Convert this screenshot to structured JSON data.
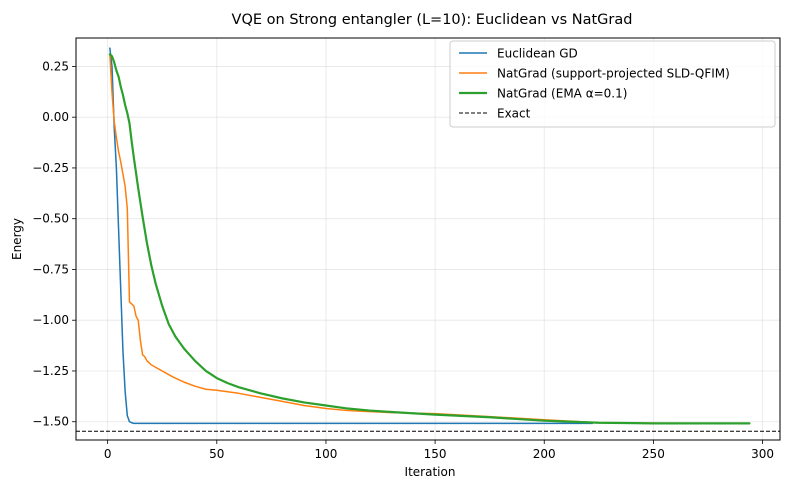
{
  "chart_data": {
    "type": "line",
    "title": "VQE on Strong entangler (L=10): Euclidean vs NatGrad",
    "xlabel": "Iteration",
    "ylabel": "Energy",
    "xlim": [
      -14.5,
      308
    ],
    "ylim": [
      -1.59,
      0.39
    ],
    "xticks": [
      0,
      50,
      100,
      150,
      200,
      250,
      300
    ],
    "yticks": [
      -1.5,
      -1.25,
      -1.0,
      -0.75,
      -0.5,
      -0.25,
      0.0,
      0.25
    ],
    "xtick_labels": [
      "0",
      "50",
      "100",
      "150",
      "200",
      "250",
      "300"
    ],
    "ytick_labels": [
      "−1.50",
      "−1.25",
      "−1.00",
      "−0.75",
      "−0.50",
      "−0.25",
      "0.00",
      "0.25"
    ],
    "grid": true,
    "legend_position": "top-right",
    "series": [
      {
        "name": "Euclidean GD",
        "color": "#1f77b4",
        "style": "solid",
        "width": 1.5,
        "x": [
          1,
          2,
          3,
          4,
          5,
          6,
          7,
          8,
          9,
          10,
          11,
          12,
          15,
          20,
          50,
          100,
          150,
          200,
          222
        ],
        "y": [
          0.34,
          0.25,
          -0.05,
          -0.25,
          -0.55,
          -0.85,
          -1.15,
          -1.35,
          -1.47,
          -1.5,
          -1.505,
          -1.508,
          -1.508,
          -1.508,
          -1.508,
          -1.508,
          -1.508,
          -1.508,
          -1.508
        ]
      },
      {
        "name": "NatGrad (support-projected SLD-QFIM)",
        "color": "#ff7f0e",
        "style": "solid",
        "width": 1.5,
        "x": [
          1,
          2,
          3,
          4,
          5,
          6,
          7,
          8,
          9,
          10,
          11,
          12,
          13,
          14,
          15,
          16,
          17,
          18,
          19,
          20,
          25,
          30,
          35,
          40,
          45,
          50,
          60,
          70,
          80,
          90,
          100,
          110,
          120,
          130,
          150,
          175,
          200,
          225,
          250,
          280
        ],
        "y": [
          0.31,
          0.12,
          -0.02,
          -0.1,
          -0.17,
          -0.22,
          -0.28,
          -0.34,
          -0.45,
          -0.91,
          -0.92,
          -0.93,
          -0.98,
          -1.0,
          -1.1,
          -1.17,
          -1.18,
          -1.2,
          -1.21,
          -1.22,
          -1.25,
          -1.28,
          -1.305,
          -1.325,
          -1.34,
          -1.345,
          -1.36,
          -1.38,
          -1.4,
          -1.42,
          -1.435,
          -1.445,
          -1.45,
          -1.455,
          -1.46,
          -1.475,
          -1.49,
          -1.505,
          -1.507,
          -1.508
        ]
      },
      {
        "name": "NatGrad (EMA α=0.1)",
        "color": "#2ca02c",
        "style": "solid",
        "width": 2.2,
        "x": [
          1,
          2,
          3,
          4,
          5,
          6,
          7,
          8,
          9,
          10,
          11,
          12,
          14,
          16,
          18,
          20,
          22,
          25,
          28,
          31,
          35,
          40,
          45,
          50,
          55,
          60,
          70,
          80,
          90,
          100,
          110,
          120,
          130,
          150,
          175,
          200,
          225,
          250,
          275,
          294
        ],
        "y": [
          0.31,
          0.3,
          0.27,
          0.23,
          0.2,
          0.15,
          0.11,
          0.06,
          0.02,
          -0.03,
          -0.12,
          -0.2,
          -0.35,
          -0.49,
          -0.62,
          -0.73,
          -0.82,
          -0.93,
          -1.02,
          -1.08,
          -1.14,
          -1.2,
          -1.25,
          -1.285,
          -1.31,
          -1.33,
          -1.36,
          -1.385,
          -1.405,
          -1.42,
          -1.435,
          -1.445,
          -1.452,
          -1.465,
          -1.478,
          -1.495,
          -1.505,
          -1.508,
          -1.508,
          -1.508
        ]
      },
      {
        "name": "Exact",
        "color": "#000000",
        "style": "dashed",
        "width": 1.0,
        "hline": -1.547
      }
    ]
  }
}
